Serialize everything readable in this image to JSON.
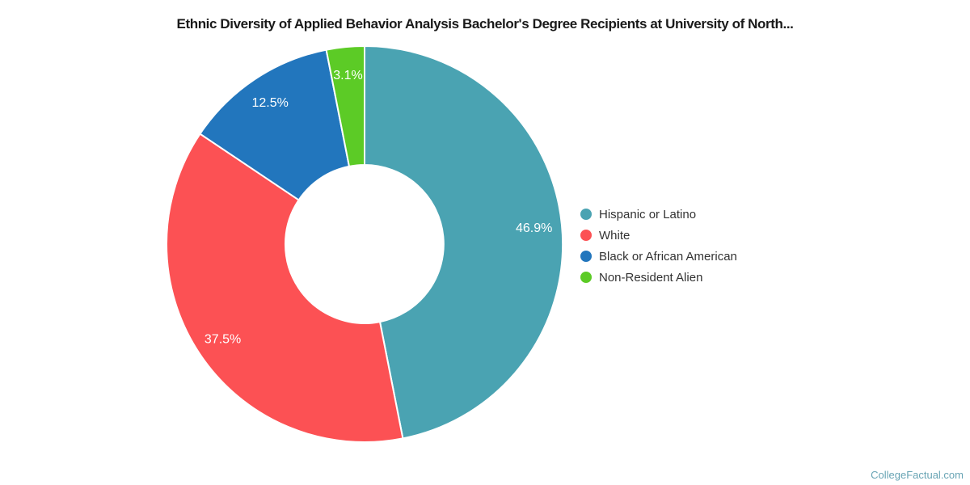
{
  "watermark": "CollegeFactual.com",
  "chart_data": {
    "type": "pie",
    "title": "Ethnic Diversity of Applied Behavior Analysis Bachelor's Degree Recipients at University of North...",
    "donut": true,
    "inner_radius_ratio": 0.4,
    "start_angle_deg": 0,
    "direction": "clockwise",
    "legend_position": "right",
    "label_color": "#ffffff",
    "separator_color": "#ffffff",
    "series": [
      {
        "name": "Hispanic or Latino",
        "value": 46.9,
        "label": "46.9%",
        "color": "#4aa3b2"
      },
      {
        "name": "White",
        "value": 37.5,
        "label": "37.5%",
        "color": "#fc5154"
      },
      {
        "name": "Black or African American",
        "value": 12.5,
        "label": "12.5%",
        "color": "#2276bd"
      },
      {
        "name": "Non-Resident Alien",
        "value": 3.1,
        "label": "3.1%",
        "color": "#5ccb26"
      }
    ]
  }
}
